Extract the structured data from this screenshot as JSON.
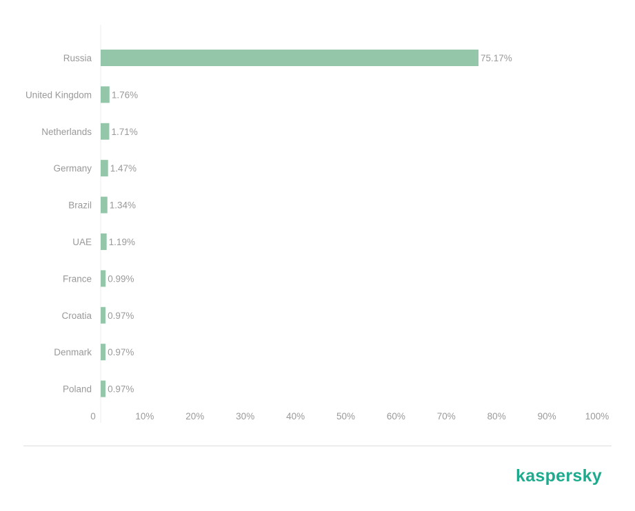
{
  "chart_data": {
    "type": "bar",
    "orientation": "horizontal",
    "categories": [
      "Russia",
      "United Kingdom",
      "Netherlands",
      "Germany",
      "Brazil",
      "UAE",
      "France",
      "Croatia",
      "Denmark",
      "Poland"
    ],
    "values": [
      75.17,
      1.76,
      1.71,
      1.47,
      1.34,
      1.19,
      0.99,
      0.97,
      0.97,
      0.97
    ],
    "value_labels": [
      "75.17%",
      "1.76%",
      "1.71%",
      "1.47%",
      "1.34%",
      "1.19%",
      "0.99%",
      "0.97%",
      "0.97%",
      "0.97%"
    ],
    "xlim": [
      0,
      100
    ],
    "x_ticks": [
      0,
      10,
      20,
      30,
      40,
      50,
      60,
      70,
      80,
      90,
      100
    ],
    "x_tick_labels": [
      "0",
      "10%",
      "20%",
      "30%",
      "40%",
      "50%",
      "60%",
      "70%",
      "80%",
      "90%",
      "100%"
    ],
    "grid": false,
    "bar_color": "#94c6a9"
  },
  "brand": {
    "logo_text": "kaspersky",
    "logo_color": "#1faa8d"
  }
}
